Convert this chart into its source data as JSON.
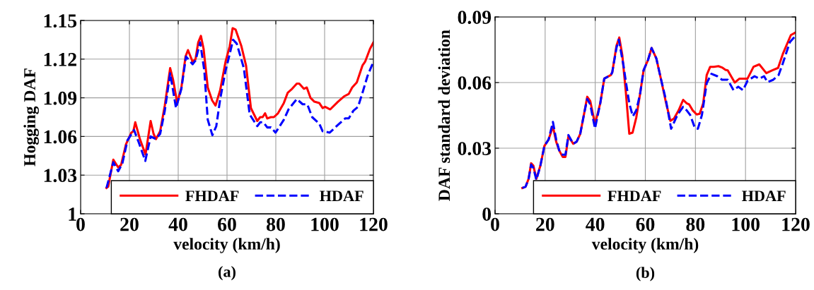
{
  "chart_data": [
    {
      "type": "line",
      "xlabel": "velocity (km/h)",
      "ylabel": "Hogging DAF",
      "annotations": [
        "(a)"
      ],
      "xlim": [
        0,
        120
      ],
      "xticks": [
        0,
        20,
        40,
        60,
        80,
        100,
        120
      ],
      "ylim": [
        1.0,
        1.15
      ],
      "yticks": [
        {
          "value": 1.0,
          "label": "1"
        },
        1.03,
        1.06,
        1.09,
        1.12,
        1.15
      ],
      "grid": true,
      "legend": "bottom right",
      "series": [
        {
          "name": "FHDAF",
          "color": "#ff0000",
          "line_style": "solid",
          "x": [
            10.6,
            11.3,
            13.4,
            15.4,
            16.6,
            18.6,
            20.8,
            21.6,
            22.4,
            24.3,
            26.6,
            28.7,
            29.9,
            30.9,
            32.6,
            34.5,
            36.7,
            37.9,
            39.6,
            41.3,
            43.0,
            44.0,
            45.9,
            47.1,
            48.2,
            49.3,
            50.4,
            52.1,
            53.9,
            55.3,
            57.2,
            59.4,
            61.1,
            62.3,
            63.5,
            65.9,
            67.8,
            69.8,
            72.4,
            73.6,
            74.6,
            75.6,
            76.5,
            78.0,
            79.2,
            80.9,
            83.3,
            84.9,
            86.7,
            88.6,
            89.6,
            91.5,
            92.7,
            94.2,
            95.8,
            97.8,
            99.2,
            100.2,
            102.3,
            105.5,
            107.9,
            109.9,
            111.3,
            113.2,
            115.5,
            116.6,
            118.6,
            120
          ],
          "values": [
            1.02,
            1.021,
            1.042,
            1.036,
            1.038,
            1.054,
            1.063,
            1.064,
            1.071,
            1.058,
            1.046,
            1.072,
            1.062,
            1.058,
            1.064,
            1.084,
            1.113,
            1.104,
            1.086,
            1.098,
            1.122,
            1.127,
            1.118,
            1.12,
            1.133,
            1.138,
            1.128,
            1.098,
            1.088,
            1.084,
            1.096,
            1.118,
            1.13,
            1.144,
            1.143,
            1.13,
            1.115,
            1.082,
            1.072,
            1.075,
            1.075,
            1.078,
            1.074,
            1.075,
            1.075,
            1.078,
            1.086,
            1.094,
            1.097,
            1.101,
            1.101,
            1.097,
            1.098,
            1.09,
            1.087,
            1.086,
            1.082,
            1.083,
            1.081,
            1.087,
            1.091,
            1.093,
            1.098,
            1.102,
            1.115,
            1.118,
            1.128,
            1.133
          ]
        },
        {
          "name": "HDAF",
          "color": "#0000ff",
          "line_style": "dashed",
          "x": [
            10.6,
            13.4,
            15.4,
            17.1,
            19.2,
            21.9,
            23.9,
            26.5,
            28.7,
            30.8,
            32.6,
            34.5,
            36.7,
            39.1,
            41.3,
            43.2,
            45.9,
            47.1,
            49.0,
            50.7,
            52.1,
            54.0,
            55.6,
            57.2,
            59.4,
            61.1,
            62.5,
            64.0,
            66.9,
            69.3,
            72.4,
            73.6,
            74.9,
            76.5,
            78.0,
            79.9,
            83.3,
            85.2,
            88.6,
            91.0,
            92.9,
            94.9,
            97.8,
            99.2,
            102.1,
            105.5,
            108.4,
            109.9,
            111.8,
            113.7,
            115.7,
            117.6,
            120
          ],
          "values": [
            1.02,
            1.04,
            1.033,
            1.039,
            1.057,
            1.065,
            1.055,
            1.041,
            1.06,
            1.058,
            1.062,
            1.08,
            1.109,
            1.082,
            1.097,
            1.122,
            1.116,
            1.119,
            1.133,
            1.111,
            1.073,
            1.061,
            1.068,
            1.089,
            1.111,
            1.124,
            1.135,
            1.132,
            1.113,
            1.077,
            1.068,
            1.071,
            1.071,
            1.067,
            1.067,
            1.063,
            1.073,
            1.081,
            1.089,
            1.085,
            1.085,
            1.075,
            1.07,
            1.064,
            1.063,
            1.069,
            1.074,
            1.074,
            1.08,
            1.083,
            1.095,
            1.107,
            1.118
          ]
        }
      ]
    },
    {
      "type": "line",
      "xlabel": "velocity (km/h)",
      "ylabel": "DAF standard deviation",
      "annotations": [
        "(b)"
      ],
      "xlim": [
        0,
        120
      ],
      "xticks": [
        0,
        20,
        40,
        60,
        80,
        100,
        120
      ],
      "ylim": [
        0,
        0.09
      ],
      "yticks": [
        {
          "value": 0,
          "label": "0"
        },
        0.03,
        0.06,
        0.09
      ],
      "grid": true,
      "legend": "bottom right",
      "series": [
        {
          "name": "FHDAF",
          "color": "#ff0000",
          "line_style": "solid",
          "x": [
            10.9,
            12.2,
            13.4,
            14.4,
            15.3,
            16.5,
            18.1,
            19.7,
            21.4,
            23.1,
            24.4,
            25.6,
            27.0,
            28.1,
            29.3,
            31.2,
            32.6,
            34.0,
            35.6,
            36.8,
            38.0,
            39.9,
            42.0,
            43.6,
            46.2,
            46.8,
            48.5,
            49.6,
            50.8,
            52.2,
            53.6,
            54.9,
            56.4,
            57.9,
            59.3,
            61.1,
            62.5,
            64.4,
            66.3,
            68.1,
            70.0,
            71.4,
            73.3,
            75.1,
            76.5,
            77.5,
            78.9,
            80.5,
            81.7,
            83.1,
            84.5,
            85.9,
            87.3,
            89.2,
            90.6,
            92.0,
            92.9,
            95.7,
            97.6,
            100.8,
            103.2,
            105.5,
            108.3,
            110.7,
            113.0,
            114.9,
            118.1,
            119.8
          ],
          "values": [
            0.0118,
            0.0124,
            0.016,
            0.0231,
            0.022,
            0.016,
            0.022,
            0.031,
            0.034,
            0.04,
            0.033,
            0.029,
            0.026,
            0.026,
            0.0355,
            0.032,
            0.033,
            0.0365,
            0.046,
            0.0535,
            0.0516,
            0.041,
            0.0505,
            0.0618,
            0.0634,
            0.0647,
            0.0769,
            0.0806,
            0.0726,
            0.0559,
            0.0366,
            0.0371,
            0.0441,
            0.0548,
            0.0656,
            0.0704,
            0.0758,
            0.071,
            0.0613,
            0.0516,
            0.0425,
            0.0435,
            0.0473,
            0.0521,
            0.0505,
            0.05,
            0.0473,
            0.0454,
            0.0457,
            0.0505,
            0.0634,
            0.0672,
            0.0672,
            0.0675,
            0.0669,
            0.0658,
            0.0656,
            0.06,
            0.0618,
            0.0618,
            0.0672,
            0.0683,
            0.0643,
            0.0656,
            0.0667,
            0.0731,
            0.0817,
            0.0828
          ]
        },
        {
          "name": "HDAF",
          "color": "#0000ff",
          "line_style": "dashed",
          "x": [
            10.9,
            12.2,
            13.4,
            14.4,
            15.3,
            16.5,
            18.1,
            19.7,
            21.4,
            23.1,
            24.4,
            25.6,
            27.0,
            28.1,
            29.3,
            31.2,
            32.6,
            34.0,
            35.6,
            36.8,
            38.0,
            39.9,
            42.0,
            43.6,
            46.2,
            46.8,
            48.5,
            49.4,
            51.3,
            52.4,
            53.6,
            55.0,
            56.4,
            57.9,
            59.3,
            61.1,
            62.5,
            64.4,
            66.3,
            68.1,
            70.3,
            72.8,
            75.1,
            76.5,
            77.9,
            79.8,
            81.0,
            82.6,
            84.5,
            86.4,
            88.7,
            90.6,
            92.9,
            95.2,
            97.1,
            99.0,
            100.8,
            103.6,
            105.5,
            107.4,
            108.8,
            111.1,
            113.2,
            114.9,
            117.7,
            119.8
          ],
          "values": [
            0.0118,
            0.0124,
            0.016,
            0.0225,
            0.021,
            0.0155,
            0.022,
            0.031,
            0.034,
            0.042,
            0.034,
            0.029,
            0.027,
            0.027,
            0.036,
            0.032,
            0.033,
            0.0365,
            0.046,
            0.0525,
            0.05,
            0.039,
            0.0505,
            0.0618,
            0.0634,
            0.0647,
            0.076,
            0.0796,
            0.0677,
            0.0591,
            0.0505,
            0.0446,
            0.0473,
            0.0548,
            0.0656,
            0.0704,
            0.0758,
            0.071,
            0.0613,
            0.0527,
            0.0389,
            0.0452,
            0.0489,
            0.0473,
            0.0452,
            0.0392,
            0.0389,
            0.0452,
            0.0597,
            0.064,
            0.0629,
            0.0613,
            0.0613,
            0.0565,
            0.0581,
            0.0565,
            0.0608,
            0.0629,
            0.0618,
            0.0629,
            0.0602,
            0.0613,
            0.0634,
            0.0688,
            0.0785,
            0.0812
          ]
        }
      ]
    }
  ]
}
